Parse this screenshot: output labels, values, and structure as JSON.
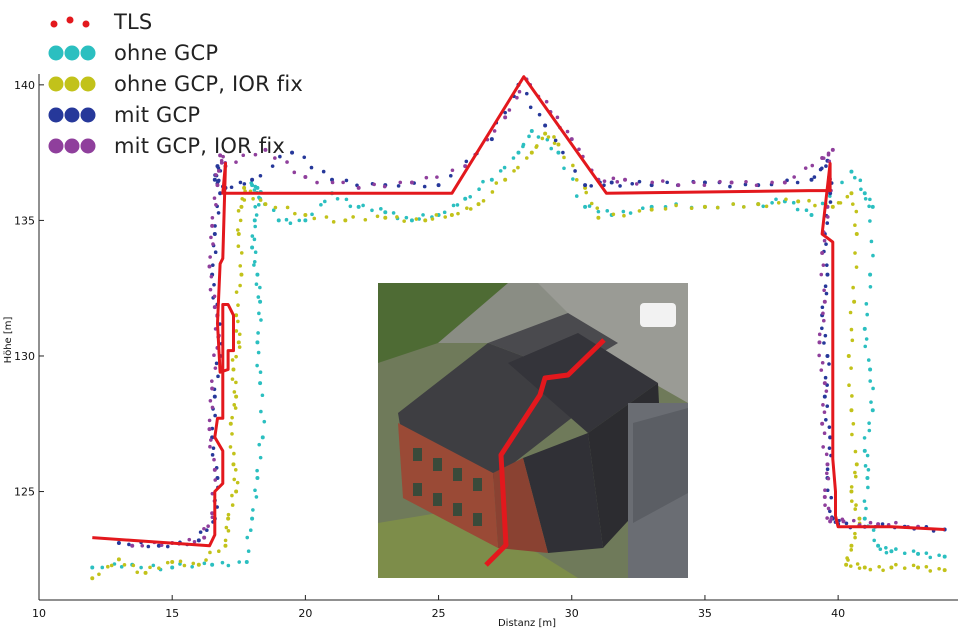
{
  "chart_data": {
    "type": "scatter",
    "xlabel": "Distanz [m]",
    "ylabel": "Höhe [m]",
    "xlim": [
      10,
      44.5
    ],
    "ylim": [
      121,
      140.4
    ],
    "xticks": [
      10,
      15,
      20,
      25,
      30,
      35,
      40
    ],
    "yticks": [
      125,
      130,
      135,
      140
    ],
    "grid": false,
    "legend_position": "top-left",
    "legend": [
      "TLS",
      "ohne GCP",
      "ohne GCP, IOR fix",
      "mit GCP",
      "mit GCP, IOR fix"
    ],
    "series": [
      {
        "name": "TLS",
        "color": "#e3181d",
        "style": "line",
        "x": [
          12.0,
          13.5,
          15.0,
          16.4,
          16.6,
          16.6,
          16.9,
          16.9,
          16.6,
          16.7,
          16.9,
          16.9,
          17.1,
          17.3,
          17.3,
          17.1,
          17.1,
          16.8,
          16.7,
          16.8,
          16.9,
          17.0,
          16.9,
          25.5,
          28.2,
          31.3,
          38.9,
          39.7,
          39.7,
          39.4,
          39.8,
          39.8,
          39.9,
          39.9,
          40.0,
          42.0,
          44.0
        ],
        "y": [
          123.3,
          123.2,
          123.1,
          123.0,
          123.4,
          125.0,
          125.3,
          126.5,
          127.0,
          127.7,
          127.7,
          131.9,
          131.9,
          131.5,
          130.2,
          130.2,
          129.5,
          129.4,
          131.2,
          133.4,
          133.6,
          137.1,
          136.0,
          136.0,
          140.3,
          136.0,
          136.1,
          136.1,
          137.1,
          134.5,
          134.2,
          126.2,
          125.0,
          124.1,
          123.7,
          123.7,
          123.6
        ]
      },
      {
        "name": "ohne GCP",
        "color": "#2bbfc0",
        "style": "points",
        "x": [
          12.0,
          13.5,
          15.0,
          16.5,
          17.8,
          18.0,
          18.2,
          18.4,
          18.3,
          18.2,
          18.3,
          18.2,
          18.0,
          18.1,
          18.3,
          18.2,
          18.0,
          19.0,
          20.0,
          21.0,
          22.0,
          23.0,
          24.0,
          25.0,
          26.0,
          27.0,
          28.0,
          28.5,
          29.5,
          30.5,
          31.5,
          33.0,
          35.0,
          37.0,
          38.0,
          39.0,
          40.5,
          41.0,
          41.3,
          41.2,
          41.0,
          41.2,
          41.3,
          41.0,
          41.1,
          41.0,
          41.5,
          42.0,
          43.0,
          44.0
        ],
        "y": [
          122.2,
          122.3,
          122.2,
          122.3,
          122.4,
          124.0,
          125.5,
          127.0,
          129.0,
          130.5,
          132.0,
          133.0,
          134.0,
          135.0,
          135.8,
          136.2,
          136.3,
          135.0,
          135.0,
          136.0,
          135.5,
          135.3,
          135.0,
          135.2,
          135.8,
          136.5,
          137.5,
          138.3,
          137.5,
          135.5,
          135.2,
          135.5,
          135.5,
          135.6,
          135.7,
          135.2,
          136.8,
          136.0,
          135.5,
          133.0,
          131.0,
          129.5,
          128.0,
          126.5,
          125.5,
          124.0,
          123.0,
          122.8,
          122.7,
          122.6
        ]
      },
      {
        "name": "ohne GCP, IOR fix",
        "color": "#c2c21a",
        "style": "points",
        "x": [
          12.0,
          13.0,
          14.0,
          15.0,
          16.0,
          17.0,
          17.1,
          17.4,
          17.3,
          17.2,
          17.4,
          17.3,
          17.5,
          17.4,
          17.6,
          17.5,
          17.6,
          17.7,
          18.5,
          20.0,
          21.5,
          23.0,
          24.5,
          25.5,
          26.5,
          27.5,
          28.5,
          29.0,
          29.5,
          30.5,
          31.0,
          33.0,
          35.0,
          37.0,
          38.5,
          39.8,
          40.5,
          40.7,
          40.6,
          40.4,
          40.5,
          40.7,
          40.5,
          40.8,
          40.5,
          40.3,
          41.0,
          42.0,
          43.0,
          44.0
        ],
        "y": [
          121.8,
          122.5,
          122.0,
          122.4,
          122.3,
          123.0,
          124.0,
          125.0,
          126.0,
          127.5,
          128.5,
          129.5,
          130.5,
          131.5,
          133.0,
          134.5,
          135.5,
          136.2,
          135.6,
          135.2,
          135.0,
          135.1,
          135.0,
          135.2,
          135.6,
          136.5,
          137.5,
          138.2,
          137.8,
          136.2,
          135.1,
          135.4,
          135.5,
          135.6,
          135.7,
          135.5,
          136.0,
          134.5,
          132.0,
          130.0,
          128.0,
          126.0,
          125.0,
          124.0,
          123.0,
          122.3,
          122.2,
          122.2,
          122.2,
          122.1
        ]
      },
      {
        "name": "mit GCP",
        "color": "#26389a",
        "style": "points",
        "x": [
          13.0,
          14.5,
          16.0,
          16.6,
          16.7,
          16.5,
          16.6,
          16.8,
          16.7,
          16.5,
          16.6,
          16.8,
          16.7,
          16.6,
          17.0,
          18.0,
          19.5,
          21.0,
          23.0,
          25.0,
          27.0,
          28.0,
          29.0,
          30.5,
          31.5,
          33.0,
          35.0,
          37.0,
          39.0,
          39.6,
          39.7,
          39.5,
          39.6,
          39.4,
          39.6,
          39.5,
          39.7,
          39.6,
          39.8,
          40.0,
          41.0,
          42.5,
          44.0
        ],
        "y": [
          123.1,
          123.0,
          123.2,
          124.0,
          125.5,
          127.0,
          128.5,
          130.0,
          131.5,
          133.0,
          134.5,
          136.0,
          137.0,
          136.5,
          136.2,
          136.5,
          137.5,
          136.5,
          136.3,
          136.3,
          138.0,
          140.0,
          138.5,
          136.3,
          136.4,
          136.3,
          136.4,
          136.3,
          136.5,
          137.2,
          136.0,
          134.5,
          133.0,
          131.5,
          130.0,
          128.5,
          127.0,
          125.5,
          124.0,
          123.8,
          123.7,
          123.7,
          123.6
        ]
      },
      {
        "name": "mit GCP, IOR fix",
        "color": "#8f3f9c",
        "style": "points",
        "x": [
          13.5,
          15.0,
          16.2,
          16.5,
          16.6,
          16.4,
          16.5,
          16.7,
          16.6,
          16.4,
          16.5,
          16.7,
          16.8,
          17.0,
          18.5,
          20.0,
          22.0,
          24.0,
          26.0,
          27.5,
          28.3,
          29.2,
          30.0,
          31.0,
          32.0,
          34.0,
          36.0,
          38.0,
          39.4,
          39.8,
          39.6,
          39.4,
          39.5,
          39.3,
          39.5,
          39.4,
          39.6,
          39.5,
          39.7,
          40.2,
          41.5,
          43.0
        ],
        "y": [
          123.0,
          123.1,
          123.3,
          124.2,
          125.8,
          127.3,
          128.8,
          130.3,
          131.8,
          133.3,
          134.8,
          136.3,
          137.4,
          137.0,
          137.6,
          136.6,
          136.2,
          136.4,
          137.0,
          138.8,
          140.2,
          139.0,
          138.0,
          136.5,
          136.5,
          136.3,
          136.4,
          136.4,
          137.3,
          137.6,
          135.5,
          133.8,
          132.0,
          130.5,
          129.0,
          127.5,
          126.0,
          124.8,
          123.9,
          123.9,
          123.8,
          123.7
        ]
      }
    ]
  },
  "inset_photo": {
    "description_icon": "building-aerial-photo-icon",
    "profile_line_color": "#e3181d"
  }
}
